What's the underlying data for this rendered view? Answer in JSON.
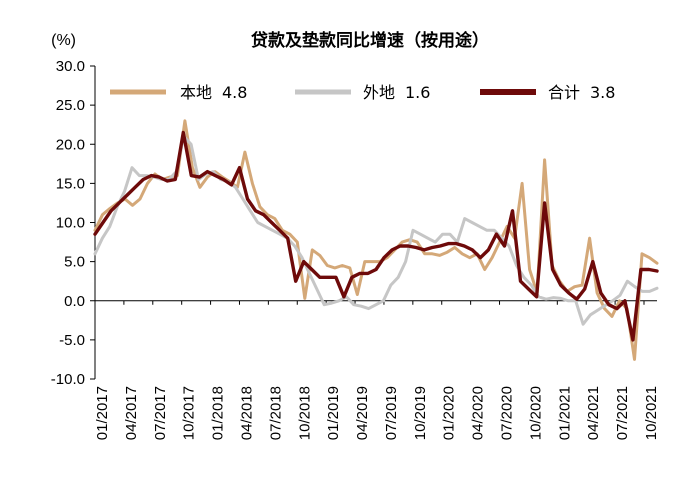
{
  "chart_data": {
    "type": "line",
    "title": "贷款及垫款同比增速（按用途）",
    "ylabel": "(%)",
    "xlabel": "",
    "ylim": [
      -10,
      30
    ],
    "yticks": [
      "30.0",
      "25.0",
      "20.0",
      "15.0",
      "10.0",
      "5.0",
      "0.0",
      "-5.0",
      "-10.0"
    ],
    "xtick_labels": [
      "01/2017",
      "04/2017",
      "07/2017",
      "10/2017",
      "01/2018",
      "04/2018",
      "07/2018",
      "10/2018",
      "01/2019",
      "04/2019",
      "07/2019",
      "10/2019",
      "01/2020",
      "04/2020",
      "07/2020",
      "10/2020",
      "01/2021",
      "04/2021",
      "07/2021",
      "10/2021"
    ],
    "legend": [
      {
        "label": "本地",
        "value": "4.8",
        "color": "#D4A878"
      },
      {
        "label": "外地",
        "value": "1.6",
        "color": "#C6C6C6"
      },
      {
        "label": "合计",
        "value": "3.8",
        "color": "#6E0A0A"
      }
    ],
    "series": [
      {
        "name": "本地",
        "color": "#D4A878",
        "values": [
          9.0,
          11.0,
          11.8,
          12.5,
          13.0,
          12.2,
          13.0,
          15.0,
          16.2,
          15.5,
          15.8,
          16.0,
          23.0,
          17.0,
          14.5,
          15.8,
          16.5,
          15.8,
          15.2,
          14.5,
          19.0,
          15.0,
          12.0,
          11.0,
          10.5,
          9.0,
          8.5,
          7.5,
          0.3,
          6.5,
          5.8,
          4.5,
          4.2,
          4.5,
          4.2,
          0.8,
          5.0,
          5.0,
          5.0,
          5.5,
          6.5,
          7.5,
          7.8,
          7.5,
          6.0,
          6.0,
          5.8,
          6.2,
          6.8,
          6.0,
          5.5,
          6.0,
          4.0,
          5.5,
          7.5,
          9.5,
          8.0,
          15.0,
          4.0,
          1.0,
          18.0,
          4.5,
          2.5,
          1.2,
          1.8,
          2.0,
          8.0,
          1.0,
          -1.0,
          -2.0,
          0.0,
          -1.0,
          -7.5,
          6.0,
          5.5,
          4.8
        ]
      },
      {
        "name": "外地",
        "color": "#C6C6C6",
        "values": [
          6.0,
          8.0,
          9.5,
          12.0,
          14.0,
          17.0,
          16.0,
          16.0,
          15.8,
          15.5,
          15.5,
          16.5,
          21.0,
          20.0,
          15.5,
          16.2,
          16.5,
          15.5,
          15.2,
          14.5,
          13.0,
          11.5,
          10.0,
          9.5,
          9.0,
          8.5,
          8.0,
          7.0,
          5.5,
          3.5,
          1.5,
          -0.5,
          -0.3,
          0.0,
          0.5,
          -0.5,
          -0.7,
          -1.0,
          -0.5,
          0.0,
          2.0,
          3.0,
          5.0,
          9.0,
          8.5,
          8.0,
          7.5,
          8.5,
          8.5,
          7.5,
          10.5,
          10.0,
          9.5,
          9.0,
          9.0,
          8.0,
          7.0,
          4.5,
          3.0,
          2.0,
          0.5,
          0.2,
          0.4,
          0.3,
          0.0,
          0.0,
          -3.0,
          -1.8,
          -1.2,
          -0.6,
          0.0,
          0.7,
          2.5,
          1.8,
          1.2,
          1.2,
          1.6
        ]
      },
      {
        "name": "合计",
        "color": "#6E0A0A",
        "values": [
          8.5,
          10.0,
          11.5,
          12.5,
          13.5,
          14.5,
          15.5,
          16.0,
          15.8,
          15.3,
          15.5,
          21.5,
          16.0,
          15.8,
          16.5,
          16.0,
          15.5,
          14.8,
          17.0,
          13.0,
          11.5,
          11.0,
          10.0,
          9.0,
          8.0,
          2.5,
          5.0,
          4.0,
          3.0,
          3.0,
          3.0,
          0.5,
          3.0,
          3.5,
          3.5,
          4.0,
          5.5,
          6.5,
          7.0,
          7.0,
          6.8,
          6.5,
          6.8,
          7.0,
          7.3,
          7.3,
          7.0,
          6.5,
          5.5,
          6.5,
          8.5,
          7.0,
          11.5,
          2.5,
          1.5,
          0.5,
          12.5,
          4.0,
          2.0,
          1.0,
          0.2,
          1.5,
          5.0,
          1.0,
          -0.5,
          -1.0,
          0.0,
          -5.0,
          4.0,
          4.0,
          3.8
        ]
      }
    ]
  }
}
